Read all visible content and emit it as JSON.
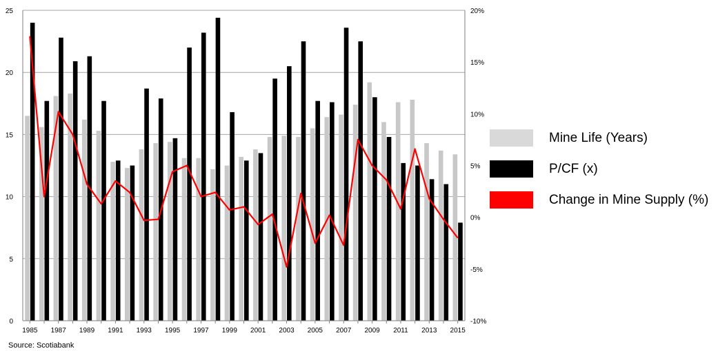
{
  "chart_data": {
    "type": "bar",
    "title": "",
    "years": [
      1985,
      1986,
      1987,
      1988,
      1989,
      1990,
      1991,
      1992,
      1993,
      1994,
      1995,
      1996,
      1997,
      1998,
      1999,
      2000,
      2001,
      2002,
      2003,
      2004,
      2005,
      2006,
      2007,
      2008,
      2009,
      2010,
      2011,
      2012,
      2013,
      2014,
      2015
    ],
    "xtick_labels": [
      "1985",
      "1987",
      "1989",
      "1991",
      "1993",
      "1995",
      "1997",
      "1999",
      "2001",
      "2003",
      "2005",
      "2007",
      "2009",
      "2011",
      "2013",
      "2015"
    ],
    "left_axis": {
      "ylim": [
        0,
        25
      ],
      "ticks": [
        "0",
        "5",
        "10",
        "15",
        "20",
        "25"
      ]
    },
    "right_axis": {
      "ylim": [
        -10,
        20
      ],
      "ticks": [
        "-10%",
        "-5%",
        "0%",
        "5%",
        "10%",
        "15%",
        "20%"
      ]
    },
    "series": [
      {
        "name": "Mine Life (Years)",
        "type": "bar",
        "color": "#c8c8c8",
        "axis": "left",
        "values": [
          16.5,
          15.6,
          18.1,
          18.3,
          16.2,
          15.3,
          12.8,
          12.3,
          13.8,
          14.3,
          14.4,
          13.1,
          13.1,
          12.2,
          12.5,
          13.2,
          13.8,
          14.8,
          14.9,
          14.8,
          15.5,
          16.4,
          16.6,
          17.4,
          19.2,
          16.0,
          17.6,
          17.8,
          14.3,
          13.7,
          13.4
        ]
      },
      {
        "name": "P/CF (x)",
        "type": "bar",
        "color": "#000000",
        "axis": "left",
        "values": [
          24.0,
          17.7,
          22.8,
          20.9,
          21.3,
          17.7,
          12.9,
          12.5,
          18.7,
          17.9,
          14.7,
          22.0,
          23.2,
          24.4,
          16.8,
          12.9,
          13.5,
          19.5,
          20.5,
          22.5,
          17.7,
          17.6,
          23.6,
          22.5,
          18.0,
          14.8,
          12.7,
          12.5,
          11.4,
          11.0,
          7.9
        ]
      },
      {
        "name": "Change in Mine Supply (%)",
        "type": "line",
        "color": "#ff0000",
        "axis": "right",
        "values": [
          17.5,
          2.0,
          10.2,
          8.0,
          3.2,
          1.3,
          3.5,
          2.4,
          -0.3,
          -0.2,
          4.4,
          5.0,
          2.0,
          2.4,
          0.7,
          1.0,
          -0.7,
          0.3,
          -4.8,
          2.3,
          -2.5,
          0.2,
          -2.7,
          7.5,
          5.0,
          3.6,
          0.8,
          6.6,
          1.8,
          -0.2,
          -2.0
        ]
      }
    ],
    "grid": "horizontal at left-axis ticks",
    "legend_position": "right"
  },
  "legend": [
    {
      "label": "Mine Life (Years)",
      "color": "#d9d9d9"
    },
    {
      "label": "P/CF (x)",
      "color": "#000000"
    },
    {
      "label": "Change in Mine Supply (%)",
      "color": "#ff0000"
    }
  ],
  "source": "Source: Scotiabank"
}
